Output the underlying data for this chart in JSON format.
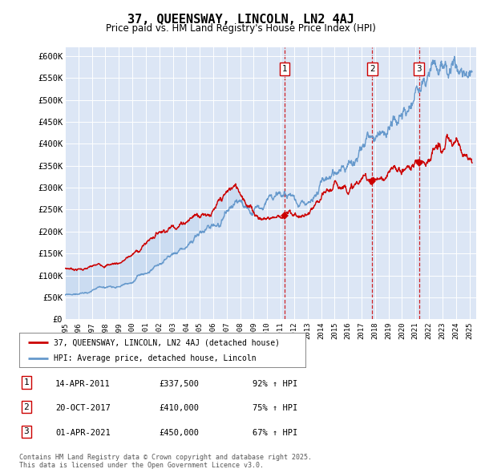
{
  "title": "37, QUEENSWAY, LINCOLN, LN2 4AJ",
  "subtitle": "Price paid vs. HM Land Registry's House Price Index (HPI)",
  "plot_bg_color": "#dce6f5",
  "ylim": [
    0,
    620000
  ],
  "yticks": [
    0,
    50000,
    100000,
    150000,
    200000,
    250000,
    300000,
    350000,
    400000,
    450000,
    500000,
    550000,
    600000
  ],
  "ytick_labels": [
    "£0",
    "£50K",
    "£100K",
    "£150K",
    "£200K",
    "£250K",
    "£300K",
    "£350K",
    "£400K",
    "£450K",
    "£500K",
    "£550K",
    "£600K"
  ],
  "sale_dates": [
    2011.28,
    2017.8,
    2021.25
  ],
  "sale_prices": [
    337500,
    410000,
    450000
  ],
  "sale_labels": [
    "1",
    "2",
    "3"
  ],
  "red_line_color": "#cc0000",
  "blue_line_color": "#6699cc",
  "fill_color": "#c5d8f0",
  "vline_color": "#cc0000",
  "legend_red_label": "37, QUEENSWAY, LINCOLN, LN2 4AJ (detached house)",
  "legend_blue_label": "HPI: Average price, detached house, Lincoln",
  "table_rows": [
    [
      "1",
      "14-APR-2011",
      "£337,500",
      "92% ↑ HPI"
    ],
    [
      "2",
      "20-OCT-2017",
      "£410,000",
      "75% ↑ HPI"
    ],
    [
      "3",
      "01-APR-2021",
      "£450,000",
      "67% ↑ HPI"
    ]
  ],
  "footnote": "Contains HM Land Registry data © Crown copyright and database right 2025.\nThis data is licensed under the Open Government Licence v3.0.",
  "xmin": 1995,
  "xmax": 2025.5
}
